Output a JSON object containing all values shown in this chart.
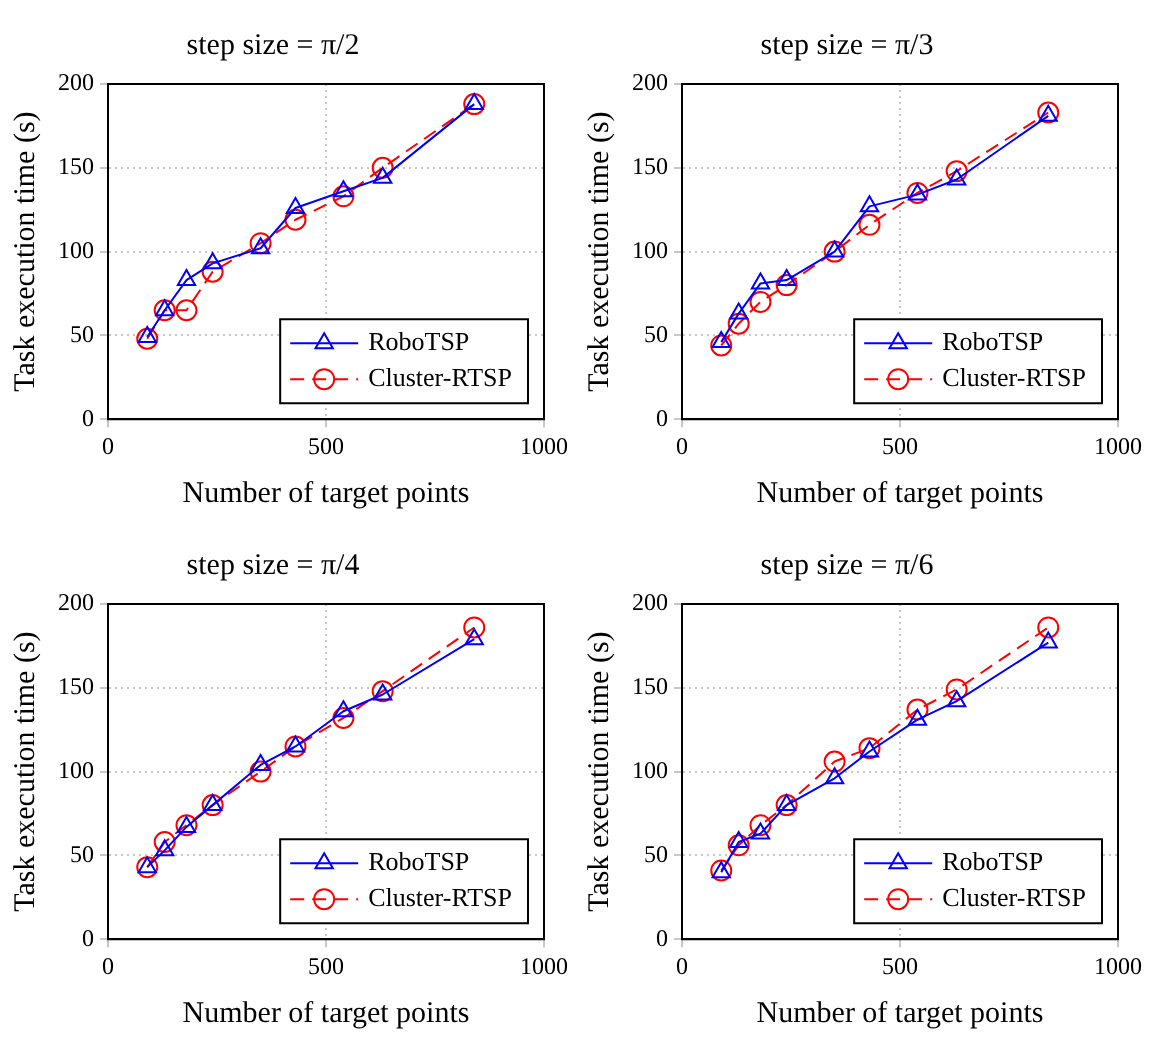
{
  "chart_data": [
    {
      "type": "line",
      "title": "step size = π/2",
      "xlabel": "Number of target points",
      "ylabel": "Task execution time (s)",
      "xlim": [
        0,
        1000
      ],
      "xticks": [
        0,
        500,
        1000
      ],
      "ylim": [
        0,
        200
      ],
      "yticks": [
        0,
        50,
        100,
        150,
        200
      ],
      "grid": true,
      "legend": "bottom right",
      "x": [
        90,
        130,
        180,
        240,
        350,
        430,
        540,
        630,
        840
      ],
      "series": [
        {
          "name": "RoboTSP",
          "color": "#0000ff",
          "marker": "triangle",
          "line_style": "solid",
          "values": [
            49,
            65,
            83,
            93,
            102,
            126,
            136,
            144,
            188
          ]
        },
        {
          "name": "Cluster-RTSP",
          "color": "#ff0000",
          "marker": "circle",
          "line_style": "dashed",
          "values": [
            48,
            65,
            65,
            88,
            105,
            119,
            133,
            150,
            188
          ]
        }
      ]
    },
    {
      "type": "line",
      "title": "step size = π/3",
      "xlabel": "Number of target points",
      "ylabel": "Task execution time (s)",
      "xlim": [
        0,
        1000
      ],
      "xticks": [
        0,
        500,
        1000
      ],
      "ylim": [
        0,
        200
      ],
      "yticks": [
        0,
        50,
        100,
        150,
        200
      ],
      "grid": true,
      "legend": "bottom right",
      "x": [
        90,
        130,
        180,
        240,
        350,
        430,
        540,
        630,
        840
      ],
      "series": [
        {
          "name": "RoboTSP",
          "color": "#0000ff",
          "marker": "triangle",
          "line_style": "solid",
          "values": [
            46,
            63,
            81,
            83,
            100,
            127,
            134,
            143,
            181
          ]
        },
        {
          "name": "Cluster-RTSP",
          "color": "#ff0000",
          "marker": "circle",
          "line_style": "dashed",
          "values": [
            44,
            57,
            70,
            80,
            100,
            116,
            135,
            148,
            183
          ]
        }
      ]
    },
    {
      "type": "line",
      "title": "step size = π/4",
      "xlabel": "Number of target points",
      "ylabel": "Task execution time (s)",
      "xlim": [
        0,
        1000
      ],
      "xticks": [
        0,
        500,
        1000
      ],
      "ylim": [
        0,
        200
      ],
      "yticks": [
        0,
        50,
        100,
        150,
        200
      ],
      "grid": true,
      "legend": "bottom right",
      "x": [
        90,
        130,
        180,
        240,
        350,
        430,
        540,
        630,
        840
      ],
      "series": [
        {
          "name": "RoboTSP",
          "color": "#0000ff",
          "marker": "triangle",
          "line_style": "solid",
          "values": [
            43,
            53,
            67,
            80,
            104,
            115,
            136,
            146,
            179
          ]
        },
        {
          "name": "Cluster-RTSP",
          "color": "#ff0000",
          "marker": "circle",
          "line_style": "dashed",
          "values": [
            43,
            58,
            68,
            80,
            100,
            115,
            132,
            148,
            186
          ]
        }
      ]
    },
    {
      "type": "line",
      "title": "step size = π/6",
      "xlabel": "Number of target points",
      "ylabel": "Task execution time (s)",
      "xlim": [
        0,
        1000
      ],
      "xticks": [
        0,
        500,
        1000
      ],
      "ylim": [
        0,
        200
      ],
      "yticks": [
        0,
        50,
        100,
        150,
        200
      ],
      "grid": true,
      "legend": "bottom right",
      "x": [
        90,
        130,
        180,
        240,
        350,
        430,
        540,
        630,
        840
      ],
      "series": [
        {
          "name": "RoboTSP",
          "color": "#0000ff",
          "marker": "triangle",
          "line_style": "solid",
          "values": [
            40,
            58,
            63,
            80,
            96,
            112,
            131,
            142,
            177
          ]
        },
        {
          "name": "Cluster-RTSP",
          "color": "#ff0000",
          "marker": "circle",
          "line_style": "dashed",
          "values": [
            41,
            56,
            68,
            80,
            106,
            114,
            137,
            149,
            186
          ]
        }
      ]
    }
  ]
}
